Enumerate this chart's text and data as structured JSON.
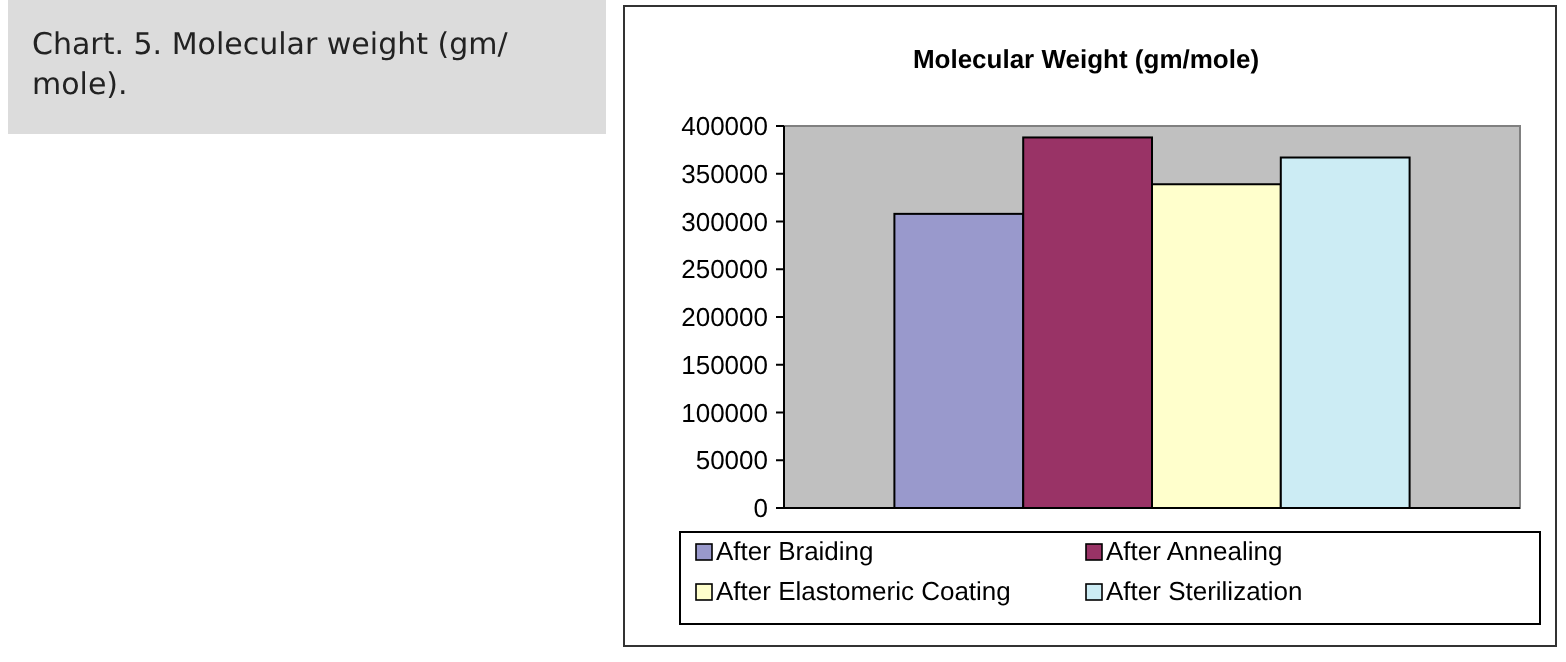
{
  "chart_data": {
    "type": "bar",
    "title": "Molecular Weight (gm/mole)",
    "categories": [
      null
    ],
    "series": [
      {
        "name": "After Braiding",
        "color": "#9999cc",
        "values": [
          308000
        ]
      },
      {
        "name": "After Annealing",
        "color": "#993366",
        "values": [
          388000
        ]
      },
      {
        "name": "After Elastomeric Coating",
        "color": "#ffffcc",
        "values": [
          339000
        ]
      },
      {
        "name": "After Sterilization",
        "color": "#ccecf4",
        "values": [
          367000
        ]
      }
    ],
    "ylim": [
      0,
      400000
    ],
    "yticks": [
      {
        "value": 0,
        "label": "0"
      },
      {
        "value": 50000,
        "label": "50000"
      },
      {
        "value": 100000,
        "label": "100000"
      },
      {
        "value": 150000,
        "label": "150000"
      },
      {
        "value": 200000,
        "label": "200000"
      },
      {
        "value": 250000,
        "label": "250000"
      },
      {
        "value": 300000,
        "label": "300000"
      },
      {
        "value": 350000,
        "label": "350000"
      },
      {
        "value": 400000,
        "label": "400000"
      }
    ],
    "legend": "bottom",
    "annotations": [
      "Chart. 5. Molecular weight (gm/ mole)."
    ]
  }
}
